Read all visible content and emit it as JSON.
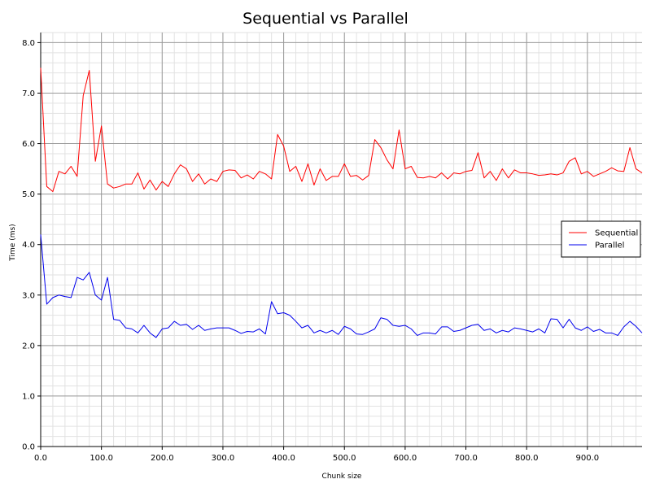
{
  "chart_data": {
    "type": "line",
    "title": "Sequential vs Parallel",
    "xlabel": "Chunk size",
    "ylabel": "Time (ms)",
    "xlim": [
      0,
      990
    ],
    "ylim": [
      0,
      8.2
    ],
    "xticks": [
      0,
      100,
      200,
      300,
      400,
      500,
      600,
      700,
      800,
      900
    ],
    "xtick_labels": [
      "0.0",
      "100.0",
      "200.0",
      "300.0",
      "400.0",
      "500.0",
      "600.0",
      "700.0",
      "800.0",
      "900.0"
    ],
    "yticks": [
      0,
      1,
      2,
      3,
      4,
      5,
      6,
      7,
      8
    ],
    "ytick_labels": [
      "0.0",
      "1.0",
      "2.0",
      "3.0",
      "4.0",
      "5.0",
      "6.0",
      "7.0",
      "8.0"
    ],
    "grid": true,
    "minor_grid": true,
    "legend_position": "right",
    "x": [
      0,
      10,
      20,
      30,
      40,
      50,
      60,
      70,
      80,
      90,
      100,
      110,
      120,
      130,
      140,
      150,
      160,
      170,
      180,
      190,
      200,
      210,
      220,
      230,
      240,
      250,
      260,
      270,
      280,
      290,
      300,
      310,
      320,
      330,
      340,
      350,
      360,
      370,
      380,
      390,
      400,
      410,
      420,
      430,
      440,
      450,
      460,
      470,
      480,
      490,
      500,
      510,
      520,
      530,
      540,
      550,
      560,
      570,
      580,
      590,
      600,
      610,
      620,
      630,
      640,
      650,
      660,
      670,
      680,
      690,
      700,
      710,
      720,
      730,
      740,
      750,
      760,
      770,
      780,
      790,
      800,
      810,
      820,
      830,
      840,
      850,
      860,
      870,
      880,
      890,
      900,
      910,
      920,
      930,
      940,
      950,
      960,
      970,
      980,
      990
    ],
    "series": [
      {
        "name": "Sequential",
        "color": "#ff0000",
        "values": [
          7.5,
          5.15,
          5.05,
          5.45,
          5.4,
          5.55,
          5.35,
          6.95,
          7.45,
          5.65,
          6.35,
          5.2,
          5.12,
          5.15,
          5.2,
          5.2,
          5.42,
          5.1,
          5.28,
          5.08,
          5.25,
          5.15,
          5.4,
          5.58,
          5.5,
          5.25,
          5.4,
          5.2,
          5.3,
          5.25,
          5.45,
          5.48,
          5.47,
          5.32,
          5.38,
          5.3,
          5.45,
          5.4,
          5.3,
          6.18,
          5.95,
          5.45,
          5.55,
          5.25,
          5.6,
          5.18,
          5.5,
          5.27,
          5.35,
          5.35,
          5.6,
          5.35,
          5.37,
          5.28,
          5.37,
          6.08,
          5.92,
          5.68,
          5.5,
          6.27,
          5.5,
          5.55,
          5.33,
          5.32,
          5.35,
          5.32,
          5.42,
          5.3,
          5.42,
          5.4,
          5.45,
          5.47,
          5.82,
          5.32,
          5.45,
          5.27,
          5.5,
          5.32,
          5.48,
          5.42,
          5.42,
          5.4,
          5.37,
          5.38,
          5.4,
          5.38,
          5.42,
          5.65,
          5.72,
          5.4,
          5.45,
          5.35,
          5.4,
          5.45,
          5.52,
          5.46,
          5.45,
          5.92,
          5.5,
          5.42
        ]
      },
      {
        "name": "Parallel",
        "color": "#0000ee",
        "values": [
          4.2,
          2.82,
          2.95,
          3.0,
          2.97,
          2.95,
          3.35,
          3.3,
          3.45,
          3.0,
          2.9,
          3.35,
          2.52,
          2.5,
          2.35,
          2.33,
          2.25,
          2.4,
          2.25,
          2.16,
          2.33,
          2.35,
          2.48,
          2.4,
          2.42,
          2.32,
          2.4,
          2.3,
          2.33,
          2.35,
          2.35,
          2.35,
          2.3,
          2.24,
          2.28,
          2.27,
          2.33,
          2.23,
          2.87,
          2.63,
          2.65,
          2.6,
          2.48,
          2.35,
          2.4,
          2.25,
          2.3,
          2.25,
          2.3,
          2.22,
          2.38,
          2.33,
          2.23,
          2.22,
          2.27,
          2.33,
          2.55,
          2.52,
          2.4,
          2.38,
          2.4,
          2.33,
          2.2,
          2.25,
          2.25,
          2.23,
          2.37,
          2.37,
          2.28,
          2.3,
          2.35,
          2.4,
          2.42,
          2.3,
          2.33,
          2.25,
          2.3,
          2.27,
          2.35,
          2.33,
          2.3,
          2.27,
          2.33,
          2.25,
          2.53,
          2.52,
          2.35,
          2.52,
          2.35,
          2.3,
          2.37,
          2.28,
          2.32,
          2.25,
          2.25,
          2.2,
          2.37,
          2.48,
          2.38,
          2.25
        ]
      }
    ]
  }
}
